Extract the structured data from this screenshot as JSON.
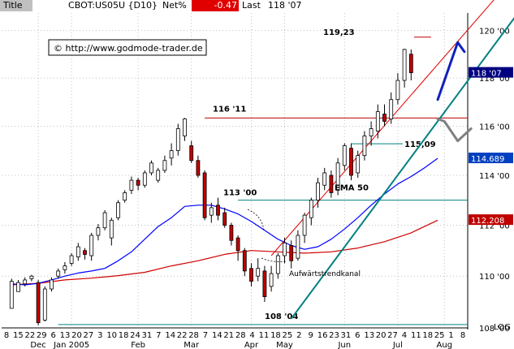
{
  "header": {
    "title_label": "Title",
    "symbol": "CBOT:US05U {D10}",
    "net_label": "Net%",
    "net_value": "-0.47",
    "last_label": "Last",
    "last_value": "118 '07"
  },
  "colors": {
    "bg": "#ffffff",
    "grid": "#c0c0c0",
    "candle": "#000000",
    "candle_up_fill": "#ffffff",
    "candle_down_fill": "#c00000",
    "trend_teal": "#008080",
    "channel_red": "#e00000",
    "level_red": "#c00000",
    "level_teal": "#008080",
    "ema50": "#0000ff",
    "ema_long": "#d00000",
    "proj_blue": "#1020c0",
    "proj_gray": "#808080",
    "tag_navy": "#000080",
    "tag_blue": "#0040c0",
    "tag_red": "#c00000",
    "net_bg": "#e00000"
  },
  "watermark": "© http://www.godmode-trader.de",
  "scale_label": "LOG",
  "chart_data": {
    "type": "candlestick",
    "title": "CBOT:US05U {D10}",
    "y_scale": "log",
    "ylim": [
      108.0,
      120.75
    ],
    "y_ticks": [
      108.0,
      110.0,
      112.0,
      114.0,
      116.0,
      118.0,
      120.0
    ],
    "y_tick_labels": [
      "108 '00",
      "110 '00",
      "112 '00",
      "114 '00",
      "116 '00",
      "118 '00",
      "120 '00"
    ],
    "price_tags": [
      {
        "label": "118 '07",
        "value": 118.22,
        "color_key": "tag_navy"
      },
      {
        "label": "114.689",
        "value": 114.689,
        "color_key": "tag_blue"
      },
      {
        "label": "112.208",
        "value": 112.208,
        "color_key": "tag_red"
      }
    ],
    "x_day_labels": [
      "8",
      "15",
      "22",
      "29",
      "6",
      "13",
      "20",
      "27",
      "3",
      "10",
      "18",
      "24",
      "31",
      "7",
      "14",
      "22",
      "28",
      "7",
      "14",
      "21",
      "28",
      "4",
      "11",
      "18",
      "25",
      "2",
      "9",
      "16",
      "23",
      "31",
      "6",
      "13",
      "20",
      "27",
      "4",
      "11",
      "18",
      "25",
      "1",
      "8"
    ],
    "x_month_labels": [
      "Dec",
      "Jan 2005",
      "Feb",
      "Mar",
      "Apr",
      "May",
      "Jun",
      "Jul",
      "Aug"
    ],
    "x_month_ticks": [
      5,
      10,
      20,
      28,
      37,
      42,
      51,
      59,
      66
    ],
    "horizontal_levels": [
      {
        "label": "116 '11",
        "value": 116.34,
        "x_start": 30,
        "color_key": "level_red"
      },
      {
        "label": "115,09",
        "value": 115.28,
        "x_start": 52,
        "color_key": "level_teal"
      },
      {
        "label": "113 '00",
        "value": 113.0,
        "x_start": 35,
        "color_key": "level_teal"
      },
      {
        "label": "108 '04",
        "value": 108.13,
        "x_start": 8,
        "color_key": "level_teal"
      },
      {
        "label": "119,23",
        "value": 119.72,
        "x_start": 64,
        "color_key": "level_red"
      }
    ],
    "annotations": [
      "EMA 50",
      "Aufwärtstrendkanal"
    ],
    "trend_lines": [
      {
        "name": "support",
        "points": [
          [
            43,
            108.35
          ],
          [
            79,
            121.5
          ]
        ],
        "color_key": "trend_teal"
      },
      {
        "name": "channel",
        "points": [
          [
            40,
            110.8
          ],
          [
            74,
            121.5
          ]
        ],
        "color_key": "channel_red"
      }
    ],
    "projections": [
      {
        "color_key": "proj_blue",
        "points": [
          [
            65,
            117.1
          ],
          [
            68,
            119.5
          ],
          [
            69,
            119.1
          ]
        ]
      },
      {
        "color_key": "proj_gray",
        "points": [
          [
            65,
            116.3
          ],
          [
            66,
            116.2
          ],
          [
            68,
            115.4
          ],
          [
            70,
            115.9
          ]
        ]
      }
    ],
    "ema50": [
      [
        1,
        109.7
      ],
      [
        3,
        109.66
      ],
      [
        5,
        109.72
      ],
      [
        7,
        109.85
      ],
      [
        9,
        110.0
      ],
      [
        11,
        110.12
      ],
      [
        13,
        110.2
      ],
      [
        15,
        110.3
      ],
      [
        17,
        110.6
      ],
      [
        19,
        110.95
      ],
      [
        21,
        111.45
      ],
      [
        23,
        111.95
      ],
      [
        25,
        112.3
      ],
      [
        27,
        112.75
      ],
      [
        29,
        112.8
      ],
      [
        31,
        112.8
      ],
      [
        33,
        112.65
      ],
      [
        35,
        112.45
      ],
      [
        37,
        112.15
      ],
      [
        39,
        111.8
      ],
      [
        41,
        111.45
      ],
      [
        43,
        111.2
      ],
      [
        45,
        111.05
      ],
      [
        47,
        111.15
      ],
      [
        49,
        111.45
      ],
      [
        51,
        111.85
      ],
      [
        53,
        112.3
      ],
      [
        55,
        112.8
      ],
      [
        57,
        113.25
      ],
      [
        59,
        113.65
      ],
      [
        61,
        113.95
      ],
      [
        63,
        114.3
      ],
      [
        65,
        114.69
      ]
    ],
    "ema_long": [
      [
        1,
        109.66
      ],
      [
        5,
        109.72
      ],
      [
        9,
        109.85
      ],
      [
        13,
        109.92
      ],
      [
        17,
        110.02
      ],
      [
        21,
        110.15
      ],
      [
        25,
        110.4
      ],
      [
        29,
        110.6
      ],
      [
        33,
        110.85
      ],
      [
        37,
        111.0
      ],
      [
        41,
        110.95
      ],
      [
        45,
        110.9
      ],
      [
        49,
        110.95
      ],
      [
        53,
        111.1
      ],
      [
        57,
        111.35
      ],
      [
        61,
        111.7
      ],
      [
        65,
        112.2
      ]
    ],
    "bars": [
      [
        108.75,
        109.8,
        109.9,
        109.65
      ],
      [
        109.4,
        109.75,
        109.85,
        109.55
      ],
      [
        109.7,
        109.85,
        109.95,
        109.6
      ],
      [
        109.9,
        110.0,
        110.05,
        109.8
      ],
      [
        109.75,
        108.2,
        109.85,
        108.1
      ],
      [
        108.3,
        109.5,
        109.6,
        108.25
      ],
      [
        109.5,
        109.85,
        109.95,
        109.4
      ],
      [
        110.0,
        110.2,
        110.3,
        109.9
      ],
      [
        110.25,
        110.4,
        110.55,
        110.1
      ],
      [
        110.5,
        110.8,
        110.9,
        110.4
      ],
      [
        110.75,
        111.15,
        111.3,
        110.6
      ],
      [
        111.0,
        110.85,
        111.1,
        110.65
      ],
      [
        110.8,
        111.6,
        111.7,
        110.6
      ],
      [
        111.6,
        111.9,
        112.05,
        111.4
      ],
      [
        111.9,
        112.5,
        112.6,
        111.8
      ],
      [
        111.5,
        112.2,
        112.3,
        111.2
      ],
      [
        112.3,
        112.9,
        113.0,
        112.2
      ],
      [
        113.0,
        113.3,
        113.4,
        112.9
      ],
      [
        113.4,
        113.8,
        113.95,
        113.25
      ],
      [
        113.8,
        113.6,
        113.9,
        113.4
      ],
      [
        113.6,
        114.1,
        114.2,
        113.5
      ],
      [
        114.1,
        114.5,
        114.6,
        114.0
      ],
      [
        113.8,
        114.2,
        114.3,
        113.7
      ],
      [
        114.2,
        114.6,
        114.8,
        114.1
      ],
      [
        114.7,
        115.0,
        115.3,
        114.4
      ],
      [
        115.0,
        115.9,
        116.1,
        114.8
      ],
      [
        115.6,
        116.3,
        116.34,
        115.4
      ],
      [
        115.2,
        114.6,
        115.4,
        114.5
      ],
      [
        114.6,
        114.0,
        114.8,
        113.9
      ],
      [
        114.1,
        112.3,
        114.2,
        112.2
      ],
      [
        112.4,
        112.7,
        112.9,
        112.1
      ],
      [
        112.8,
        112.4,
        113.1,
        112.2
      ],
      [
        112.5,
        112.0,
        112.7,
        111.9
      ],
      [
        112.0,
        111.4,
        112.1,
        111.2
      ],
      [
        111.5,
        111.0,
        111.6,
        110.6
      ],
      [
        111.0,
        110.2,
        111.1,
        110.0
      ],
      [
        110.3,
        109.8,
        110.5,
        109.6
      ],
      [
        110.0,
        110.3,
        110.7,
        109.8
      ],
      [
        110.2,
        109.2,
        110.4,
        109.0
      ],
      [
        109.6,
        110.1,
        110.4,
        109.4
      ],
      [
        110.1,
        110.8,
        110.9,
        109.9
      ],
      [
        110.8,
        111.3,
        111.5,
        110.5
      ],
      [
        111.2,
        110.6,
        111.4,
        110.3
      ],
      [
        110.7,
        111.6,
        111.8,
        110.6
      ],
      [
        111.6,
        112.4,
        112.5,
        111.3
      ],
      [
        112.3,
        113.0,
        113.1,
        112.0
      ],
      [
        113.0,
        113.7,
        113.9,
        112.7
      ],
      [
        113.6,
        114.1,
        114.3,
        113.4
      ],
      [
        114.0,
        113.3,
        114.2,
        113.1
      ],
      [
        113.4,
        114.5,
        114.7,
        113.2
      ],
      [
        114.4,
        115.2,
        115.3,
        114.2
      ],
      [
        115.1,
        114.0,
        115.3,
        113.8
      ],
      [
        114.1,
        114.8,
        115.0,
        113.9
      ],
      [
        114.8,
        115.6,
        115.8,
        114.6
      ],
      [
        115.6,
        115.9,
        116.2,
        115.2
      ],
      [
        115.8,
        116.6,
        116.9,
        115.5
      ],
      [
        116.5,
        116.2,
        116.9,
        116.0
      ],
      [
        116.3,
        117.1,
        117.4,
        116.1
      ],
      [
        117.1,
        117.9,
        118.2,
        116.9
      ],
      [
        117.9,
        119.2,
        119.23,
        117.6
      ],
      [
        119.0,
        118.22,
        119.2,
        117.9
      ]
    ],
    "bar_x_start": 1
  }
}
